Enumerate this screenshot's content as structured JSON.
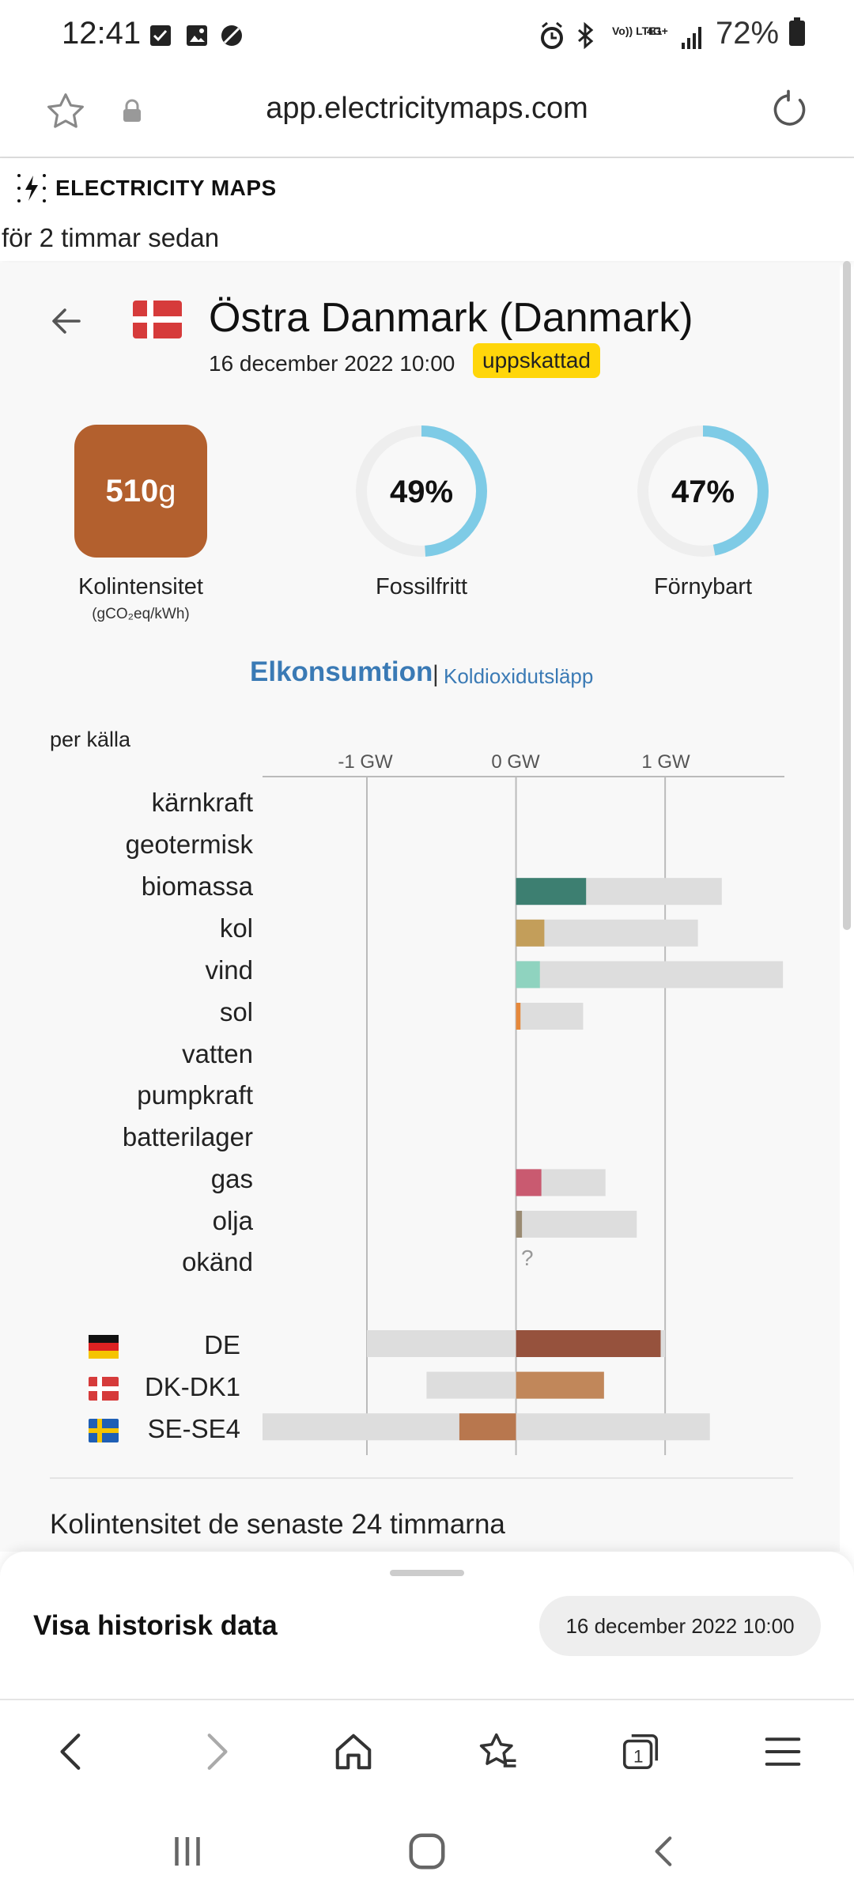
{
  "status_bar": {
    "time": "12:41",
    "icons_left": [
      "checkbox-icon",
      "image-icon",
      "blocked-icon"
    ],
    "icons_right": [
      "alarm-icon",
      "bluetooth-icon",
      "volte-icon",
      "4g-icon",
      "signal-icon"
    ],
    "network_label": "Vo)) LTE1",
    "data_label": "4G+",
    "battery": "72%"
  },
  "browser": {
    "url": "app.electricitymaps.com"
  },
  "app": {
    "brand": "ELECTRICITY MAPS",
    "updated": "för 2 timmar sedan"
  },
  "zone": {
    "title": "Östra Danmark (Danmark)",
    "datetime": "16 december 2022 10:00",
    "badge": "uppskattad"
  },
  "kpis": {
    "carbon_value": "510",
    "carbon_unit": "g",
    "carbon_label": "Kolintensitet",
    "carbon_sub": "(gCO₂eq/kWh)",
    "fossil_free_value": "49%",
    "fossil_free_pct": 49,
    "fossil_free_label": "Fossilfritt",
    "renewable_value": "47%",
    "renewable_pct": 47,
    "renewable_label": "Förnybart",
    "ring_color": "#7ecbe6"
  },
  "tabs": {
    "active": "Elkonsumtion",
    "separator": "|",
    "inactive": "Koldioxidutsläpp"
  },
  "chart": {
    "group_label": "per källa",
    "ticks": [
      "-1 GW",
      "0 GW",
      "1 GW"
    ]
  },
  "chart_data": {
    "type": "bar",
    "unit": "GW",
    "xlim": [
      -1.7,
      1.8
    ],
    "sources": [
      {
        "name": "kärnkraft",
        "value": null,
        "capacity": null,
        "color": null
      },
      {
        "name": "geotermisk",
        "value": null,
        "capacity": null,
        "color": null
      },
      {
        "name": "biomassa",
        "value": 0.47,
        "capacity": 1.38,
        "color": "#3d7f71"
      },
      {
        "name": "kol",
        "value": 0.19,
        "capacity": 1.22,
        "color": "#c39e5a"
      },
      {
        "name": "vind",
        "value": 0.16,
        "capacity": 1.79,
        "color": "#8fd3bf"
      },
      {
        "name": "sol",
        "value": 0.03,
        "capacity": 0.45,
        "color": "#e6883a"
      },
      {
        "name": "vatten",
        "value": null,
        "capacity": null,
        "color": null
      },
      {
        "name": "pumpkraft",
        "value": null,
        "capacity": null,
        "color": null
      },
      {
        "name": "batterilager",
        "value": null,
        "capacity": null,
        "color": null
      },
      {
        "name": "gas",
        "value": 0.17,
        "capacity": 0.6,
        "color": "#c95a70"
      },
      {
        "name": "olja",
        "value": 0.04,
        "capacity": 0.81,
        "color": "#9a8a72"
      },
      {
        "name": "okänd",
        "value": null,
        "capacity": null,
        "color": null,
        "unknown_marker": "?"
      }
    ],
    "exchanges": [
      {
        "name": "DE",
        "flag": "de",
        "value": 0.97,
        "capacity_min": -1.0,
        "capacity_max": 1.0,
        "color": "#96523d"
      },
      {
        "name": "DK-DK1",
        "flag": "dk",
        "value": 0.59,
        "capacity_min": -0.6,
        "capacity_max": 0.59,
        "color": "#c1875a"
      },
      {
        "name": "SE-SE4",
        "flag": "se",
        "value": -0.38,
        "capacity_min": -1.7,
        "capacity_max": 1.3,
        "color": "#b8774e"
      }
    ]
  },
  "history": {
    "title": "Kolintensitet de senaste 24 timmarna"
  },
  "sheet": {
    "label": "Visa historisk data",
    "button": "16 december 2022 10:00"
  }
}
